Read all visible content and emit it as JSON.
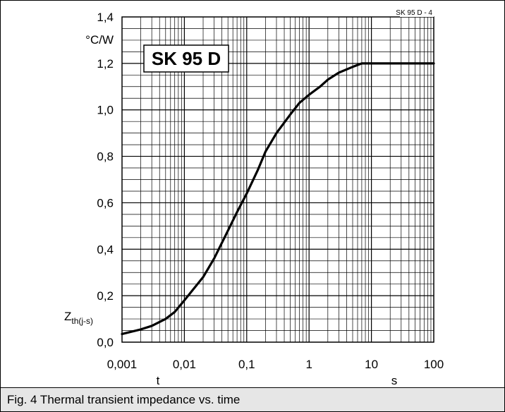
{
  "chart_data": {
    "type": "line",
    "title": "SK 95 D",
    "reference": "SK 95 D  - 4",
    "xlabel": "t",
    "xunit": "s",
    "ylabel_main": "Z",
    "ylabel_sub": "th(j-s)",
    "yunit": "°C/W",
    "xscale": "log",
    "xlim": [
      0.001,
      100
    ],
    "ylim": [
      0,
      1.4
    ],
    "grid": true,
    "x_tick_labels": [
      "0,001",
      "0,01",
      "0,1",
      "1",
      "10",
      "100"
    ],
    "y_tick_labels": [
      "0,0",
      "0,2",
      "0,4",
      "0,6",
      "0,8",
      "1,0",
      "1,2",
      "1,4"
    ],
    "series": [
      {
        "color": "#000000",
        "points": [
          [
            0.001,
            0.035
          ],
          [
            0.002,
            0.055
          ],
          [
            0.003,
            0.07
          ],
          [
            0.005,
            0.1
          ],
          [
            0.007,
            0.13
          ],
          [
            0.01,
            0.18
          ],
          [
            0.02,
            0.28
          ],
          [
            0.03,
            0.36
          ],
          [
            0.05,
            0.48
          ],
          [
            0.07,
            0.56
          ],
          [
            0.1,
            0.64
          ],
          [
            0.15,
            0.74
          ],
          [
            0.2,
            0.82
          ],
          [
            0.3,
            0.9
          ],
          [
            0.5,
            0.98
          ],
          [
            0.7,
            1.03
          ],
          [
            1.0,
            1.065
          ],
          [
            1.5,
            1.1
          ],
          [
            2.0,
            1.13
          ],
          [
            3.0,
            1.16
          ],
          [
            5.0,
            1.185
          ],
          [
            7.0,
            1.2
          ],
          [
            10.0,
            1.2
          ],
          [
            100.0,
            1.2
          ]
        ]
      }
    ]
  },
  "caption": "Fig. 4 Thermal transient impedance vs. time"
}
